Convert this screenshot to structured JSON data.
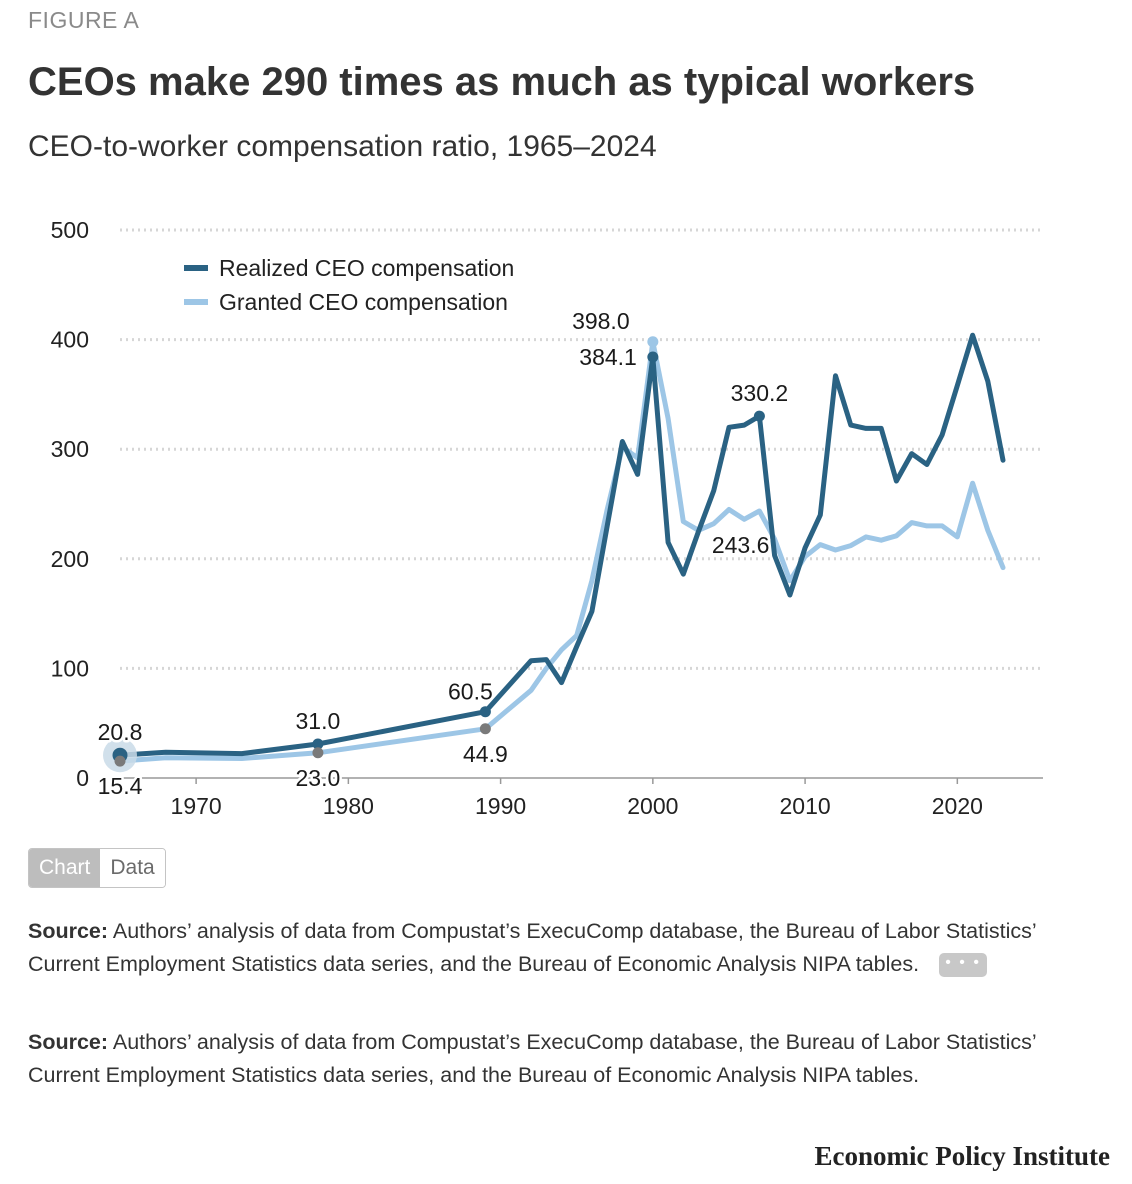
{
  "figure_label": "FIGURE A",
  "toggle": {
    "chart_label": "Chart",
    "data_label": "Data"
  },
  "source_1": {
    "label": "Source:",
    "text": "Authors’ analysis of data from Compustat’s ExecuComp database, the Bureau of Labor Statistics’ Current Employment Statistics data series, and the Bureau of Economic Analysis NIPA tables.",
    "more_label": "• • •"
  },
  "source_2": {
    "label": "Source:",
    "text": "Authors’ analysis of data from Compustat’s ExecuComp database, the Bureau of Labor Statistics’ Current Employment Statistics data series, and the Bureau of Economic Analysis NIPA tables."
  },
  "publisher": "Economic Policy Institute",
  "colors": {
    "realized": "#2a6283",
    "granted": "#9dc6e6",
    "marker_gray": "#7a7a7a",
    "highlight_halo": "#c9dbe8",
    "grid": "#d6d6d6",
    "axis": "#999999"
  },
  "chart_data": {
    "type": "line",
    "title": "CEOs make 290 times as much as typical workers",
    "subtitle": "CEO-to-worker compensation ratio, 1965–2024",
    "xlabel": "",
    "ylabel": "",
    "xlim": [
      1965,
      2023
    ],
    "ylim": [
      0,
      500
    ],
    "yticks": [
      0,
      100,
      200,
      300,
      400,
      500
    ],
    "xticks": [
      1970,
      1980,
      1990,
      2000,
      2010,
      2020
    ],
    "grid": true,
    "legend_position": "top-left",
    "series": [
      {
        "name": "Realized CEO compensation",
        "color_key": "realized",
        "points": [
          [
            1965,
            20.8
          ],
          [
            1968,
            23.5
          ],
          [
            1973,
            22.3
          ],
          [
            1978,
            31.0
          ],
          [
            1989,
            60.5
          ],
          [
            1992,
            107
          ],
          [
            1993,
            108
          ],
          [
            1994,
            87
          ],
          [
            1995,
            120
          ],
          [
            1996,
            152
          ],
          [
            1997,
            230
          ],
          [
            1998,
            307
          ],
          [
            1999,
            277
          ],
          [
            2000,
            384.1
          ],
          [
            2001,
            215
          ],
          [
            2002,
            186
          ],
          [
            2003,
            225
          ],
          [
            2004,
            262
          ],
          [
            2005,
            320
          ],
          [
            2006,
            322
          ],
          [
            2007,
            330.2
          ],
          [
            2008,
            203
          ],
          [
            2009,
            167
          ],
          [
            2010,
            210
          ],
          [
            2011,
            240
          ],
          [
            2012,
            367
          ],
          [
            2013,
            322
          ],
          [
            2014,
            319
          ],
          [
            2015,
            319
          ],
          [
            2016,
            271
          ],
          [
            2017,
            296
          ],
          [
            2018,
            286
          ],
          [
            2019,
            313
          ],
          [
            2020,
            358
          ],
          [
            2021,
            404
          ],
          [
            2022,
            362
          ],
          [
            2023,
            290
          ]
        ]
      },
      {
        "name": "Granted CEO compensation",
        "color_key": "granted",
        "points": [
          [
            1965,
            15.4
          ],
          [
            1968,
            18.5
          ],
          [
            1973,
            17.8
          ],
          [
            1978,
            23.0
          ],
          [
            1989,
            44.9
          ],
          [
            1992,
            80
          ],
          [
            1993,
            100
          ],
          [
            1994,
            117
          ],
          [
            1995,
            130
          ],
          [
            1996,
            180
          ],
          [
            1997,
            245
          ],
          [
            1998,
            302
          ],
          [
            1999,
            292
          ],
          [
            2000,
            398.0
          ],
          [
            2001,
            328
          ],
          [
            2002,
            234
          ],
          [
            2003,
            226
          ],
          [
            2004,
            232
          ],
          [
            2005,
            245
          ],
          [
            2006,
            236
          ],
          [
            2007,
            243.6
          ],
          [
            2008,
            218
          ],
          [
            2009,
            180
          ],
          [
            2010,
            202
          ],
          [
            2011,
            213
          ],
          [
            2012,
            208
          ],
          [
            2013,
            212
          ],
          [
            2014,
            220
          ],
          [
            2015,
            217
          ],
          [
            2016,
            221
          ],
          [
            2017,
            233
          ],
          [
            2018,
            230
          ],
          [
            2019,
            230
          ],
          [
            2020,
            220
          ],
          [
            2021,
            269
          ],
          [
            2022,
            226
          ],
          [
            2023,
            192
          ]
        ]
      }
    ],
    "annotations": [
      {
        "series": 0,
        "x": 1965,
        "y": 20.8,
        "label": "20.8",
        "place": "above",
        "marker": "large"
      },
      {
        "series": 1,
        "x": 1965,
        "y": 15.4,
        "label": "15.4",
        "place": "below",
        "marker": "gray"
      },
      {
        "series": 0,
        "x": 1978,
        "y": 31.0,
        "label": "31.0",
        "place": "above",
        "marker": "small"
      },
      {
        "series": 1,
        "x": 1978,
        "y": 23.0,
        "label": "23.0",
        "place": "below",
        "marker": "gray"
      },
      {
        "series": 0,
        "x": 1989,
        "y": 60.5,
        "label": "60.5",
        "place": "above-left",
        "marker": "small"
      },
      {
        "series": 1,
        "x": 1989,
        "y": 44.9,
        "label": "44.9",
        "place": "below",
        "marker": "gray"
      },
      {
        "series": 1,
        "x": 2000,
        "y": 398.0,
        "label": "398.0",
        "place": "above-left",
        "marker": "granted"
      },
      {
        "series": 0,
        "x": 2000,
        "y": 384.1,
        "label": "384.1",
        "place": "left",
        "marker": "small"
      },
      {
        "series": 0,
        "x": 2007,
        "y": 330.2,
        "label": "330.2",
        "place": "above",
        "marker": "small"
      },
      {
        "series": 1,
        "x": 2007,
        "y": 243.6,
        "label": "243.6",
        "place": "below-left",
        "marker": "none"
      }
    ]
  }
}
